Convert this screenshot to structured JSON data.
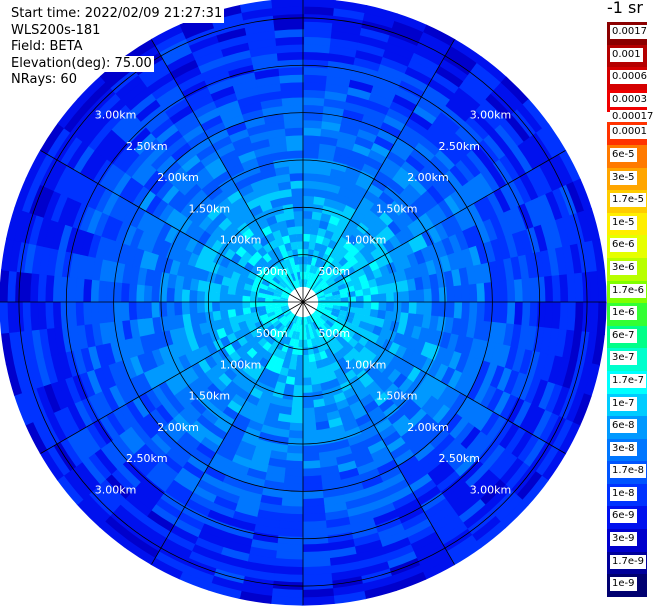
{
  "header": {
    "start_time": "Start time: 2022/02/09 21:27:31",
    "instrument": "WLS200s-181",
    "field": "Field: BETA",
    "elevation": "Elevation(deg): 75.00",
    "nrays": "NRays: 60"
  },
  "colorbar": {
    "units": "-1 sr",
    "top_levels": [
      {
        "label": "0.0017",
        "color": "#8b0000"
      },
      {
        "label": "0.001",
        "color": "#b40000"
      },
      {
        "label": "0.0006",
        "color": "#d40000"
      },
      {
        "label": "0.0003",
        "color": "#f00000"
      }
    ],
    "separator_label": "0.00017",
    "levels": [
      {
        "label": "0.0001",
        "color": "#ff3300"
      },
      {
        "label": "6e-5",
        "color": "#ff7a00"
      },
      {
        "label": "3e-5",
        "color": "#ffa500"
      },
      {
        "label": "1.7e-5",
        "color": "#ffcc00"
      },
      {
        "label": "1e-5",
        "color": "#ffee00"
      },
      {
        "label": "6e-6",
        "color": "#e6ff00"
      },
      {
        "label": "3e-6",
        "color": "#b8ff00"
      },
      {
        "label": "1.7e-6",
        "color": "#80ff00"
      },
      {
        "label": "1e-6",
        "color": "#33ff33"
      },
      {
        "label": "6e-7",
        "color": "#00ff88"
      },
      {
        "label": "3e-7",
        "color": "#00ffcc"
      },
      {
        "label": "1.7e-7",
        "color": "#00ffff"
      },
      {
        "label": "1e-7",
        "color": "#00ccff"
      },
      {
        "label": "6e-8",
        "color": "#0099ff"
      },
      {
        "label": "3e-8",
        "color": "#0077ff"
      },
      {
        "label": "1.7e-8",
        "color": "#0055ff"
      },
      {
        "label": "1e-8",
        "color": "#0033ff"
      },
      {
        "label": "6e-9",
        "color": "#0011ee"
      },
      {
        "label": "3e-9",
        "color": "#0000cc"
      },
      {
        "label": "1.7e-9",
        "color": "#00009a"
      },
      {
        "label": "1e-9",
        "color": "#000070"
      }
    ]
  },
  "chart_data": {
    "type": "heatmap",
    "projection": "polar PPI",
    "field": "BETA",
    "elevation_deg": 75.0,
    "nrays": 60,
    "range_ring_labels": [
      "500m",
      "1.00km",
      "1.50km",
      "2.00km",
      "2.50km",
      "3.00km"
    ],
    "range_rings_m": [
      500,
      1000,
      1500,
      2000,
      2500,
      3000
    ],
    "spoke_step_deg": 30,
    "max_range_m": 3200,
    "value_pattern": "high backscatter (~1e-7 to 3e-7) near center decreasing to ~1e-8 to 6e-9 at outer ranges"
  }
}
